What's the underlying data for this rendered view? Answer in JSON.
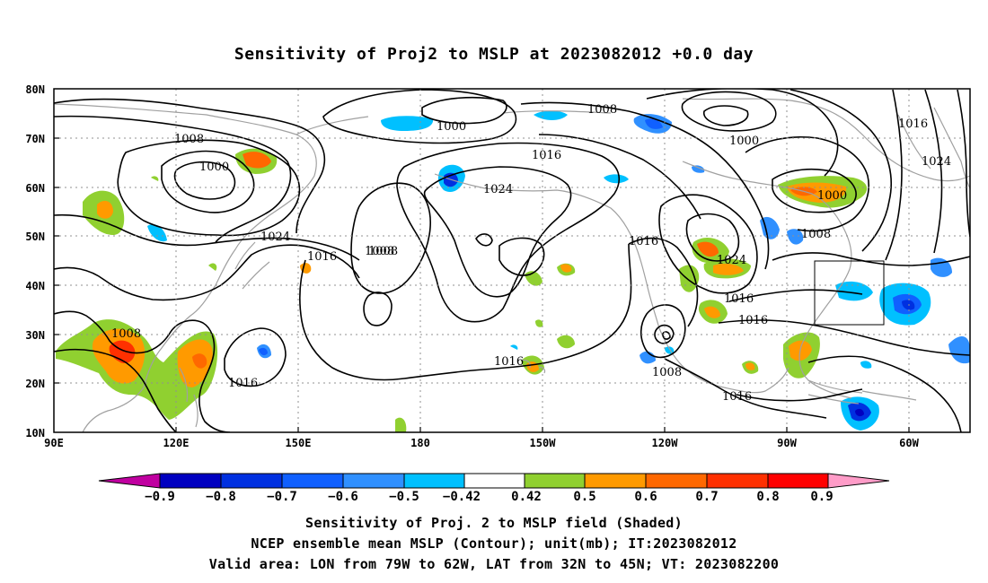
{
  "title": "Sensitivity of Proj2 to MSLP at 2023082012 +0.0 day",
  "map": {
    "lat_labels": [
      "80N",
      "70N",
      "60N",
      "50N",
      "40N",
      "30N",
      "20N",
      "10N"
    ],
    "lon_labels": [
      "90E",
      "120E",
      "150E",
      "180",
      "150W",
      "120W",
      "90W",
      "60W"
    ],
    "contour_labels": [
      "1000",
      "1008",
      "1016",
      "1024",
      "1000",
      "1008",
      "1016",
      "1024",
      "1008",
      "1016",
      "1008",
      "1016",
      "1000",
      "1008",
      "1016",
      "1024",
      "1008",
      "1016",
      "1000",
      "1016",
      "1024",
      "1016",
      "1008",
      "1016"
    ],
    "valid_area_box": {
      "lon_from": "79W",
      "lon_to": "62W",
      "lat_from": "32N",
      "lat_to": "45N"
    },
    "colors": {
      "neg": [
        "#c000a0",
        "#0000c0",
        "#0030e0",
        "#1060ff",
        "#3090ff",
        "#00c0ff",
        "#ffffff"
      ],
      "pos": [
        "#ffffff",
        "#90d030",
        "#ff9a00",
        "#ff6800",
        "#ff3000",
        "#ff0000",
        "#ff9cc8"
      ],
      "coast": "#a0a0a0",
      "contour": "#000000"
    }
  },
  "colorbar": {
    "labels": [
      "−0.9",
      "−0.8",
      "−0.7",
      "−0.6",
      "−0.5",
      "−0.42",
      "0.42",
      "0.5",
      "0.6",
      "0.7",
      "0.8",
      "0.9"
    ]
  },
  "captions": [
    "Sensitivity of Proj. 2 to MSLP field (Shaded)",
    "NCEP ensemble mean MSLP (Contour); unit(mb); IT:2023082012",
    "Valid area: LON from 79W to 62W, LAT from 32N to 45N; VT: 2023082200"
  ]
}
